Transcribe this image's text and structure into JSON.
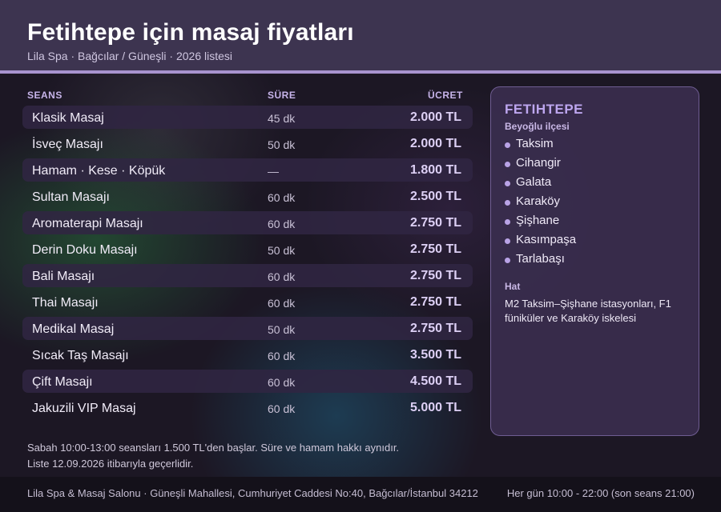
{
  "header": {
    "title": "Fetihtepe için masaj fiyatları",
    "subtitle": "Lila Spa · Bağcılar / Güneşli · 2026 listesi"
  },
  "table": {
    "columns": {
      "name": "SEANS",
      "duration": "SÜRE",
      "price": "ÜCRET"
    },
    "rows": [
      {
        "name": "Klasik Masaj",
        "duration": "45 dk",
        "price": "2.000 TL"
      },
      {
        "name": "İsveç Masajı",
        "duration": "50 dk",
        "price": "2.000 TL"
      },
      {
        "name": "Hamam · Kese · Köpük",
        "duration": "—",
        "price": "1.800 TL"
      },
      {
        "name": "Sultan Masajı",
        "duration": "60 dk",
        "price": "2.500 TL"
      },
      {
        "name": "Aromaterapi Masajı",
        "duration": "60 dk",
        "price": "2.750 TL"
      },
      {
        "name": "Derin Doku Masajı",
        "duration": "50 dk",
        "price": "2.750 TL"
      },
      {
        "name": "Bali Masajı",
        "duration": "60 dk",
        "price": "2.750 TL"
      },
      {
        "name": "Thai Masajı",
        "duration": "60 dk",
        "price": "2.750 TL"
      },
      {
        "name": "Medikal Masaj",
        "duration": "50 dk",
        "price": "2.750 TL"
      },
      {
        "name": "Sıcak Taş Masajı",
        "duration": "60 dk",
        "price": "3.500 TL"
      },
      {
        "name": "Çift Masajı",
        "duration": "60 dk",
        "price": "4.500 TL"
      },
      {
        "name": "Jakuzili VIP Masaj",
        "duration": "60 dk",
        "price": "5.000 TL"
      }
    ]
  },
  "sidebar": {
    "title": "FETIHTEPE",
    "subtitle": "Beyoğlu ilçesi",
    "places": [
      "Taksim",
      "Cihangir",
      "Galata",
      "Karaköy",
      "Şişhane",
      "Kasımpaşa",
      "Tarlabaşı"
    ],
    "transit_label": "Hat",
    "transit_text": "M2 Taksim–Şişhane istasyonları, F1 füniküler ve Karaköy iskelesi"
  },
  "notes": {
    "line1": "Sabah 10:00-13:00 seansları 1.500 TL'den başlar. Süre ve hamam hakkı aynıdır.",
    "line2": "Liste 12.09.2026 itibarıyla geçerlidir."
  },
  "footer": {
    "address": "Lila Spa & Masaj Salonu · Güneşli Mahallesi, Cumhuriyet Caddesi No:40, Bağcılar/İstanbul 34212",
    "hours": "Her gün 10:00 - 22:00 (son seans 21:00)"
  }
}
